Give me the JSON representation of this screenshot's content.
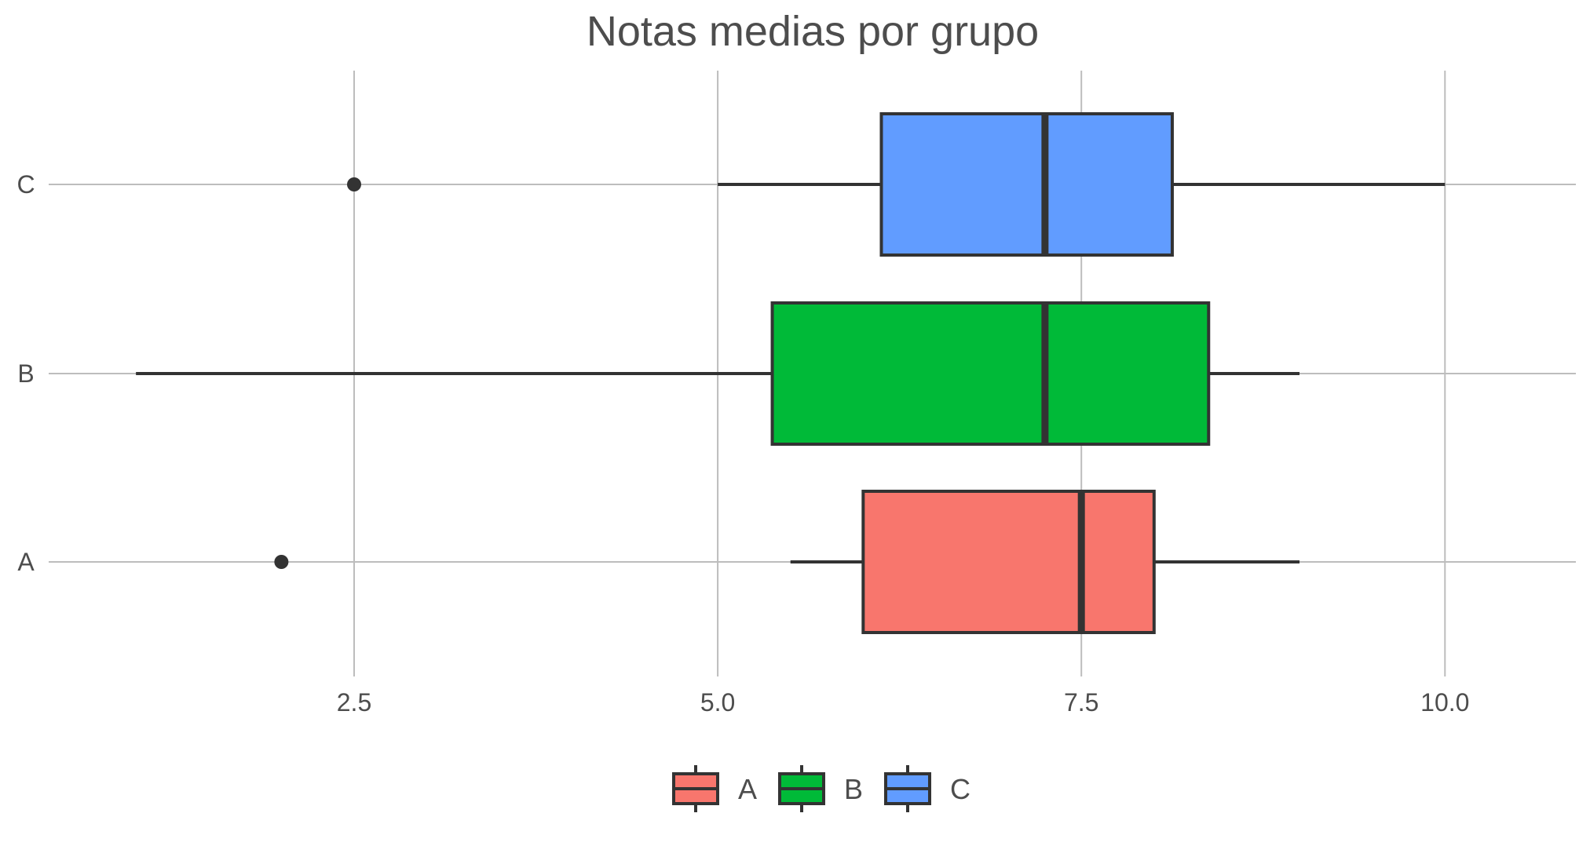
{
  "chart_data": {
    "type": "boxplot",
    "orientation": "horizontal",
    "title": "Notas medias por grupo",
    "xlabel": "",
    "ylabel": "",
    "xlim": [
      0.4,
      10.9
    ],
    "x_ticks": [
      2.5,
      5.0,
      7.5,
      10.0
    ],
    "x_tick_labels": [
      "2.5",
      "5.0",
      "7.5",
      "10.0"
    ],
    "categories": [
      "A",
      "B",
      "C"
    ],
    "grid": true,
    "legend_position": "bottom",
    "series": [
      {
        "name": "A",
        "color": "#F8766D",
        "whisker_low": 5.5,
        "q1": 6.0,
        "median": 7.5,
        "q3": 8.0,
        "whisker_high": 9.0,
        "outliers": [
          2.0
        ]
      },
      {
        "name": "B",
        "color": "#00BA38",
        "whisker_low": 1.0,
        "q1": 5.375,
        "median": 7.25,
        "q3": 8.375,
        "whisker_high": 9.0,
        "outliers": []
      },
      {
        "name": "C",
        "color": "#619CFF",
        "whisker_low": 5.0,
        "q1": 6.125,
        "median": 7.25,
        "q3": 8.125,
        "whisker_high": 10.0,
        "outliers": [
          2.5
        ]
      }
    ]
  }
}
